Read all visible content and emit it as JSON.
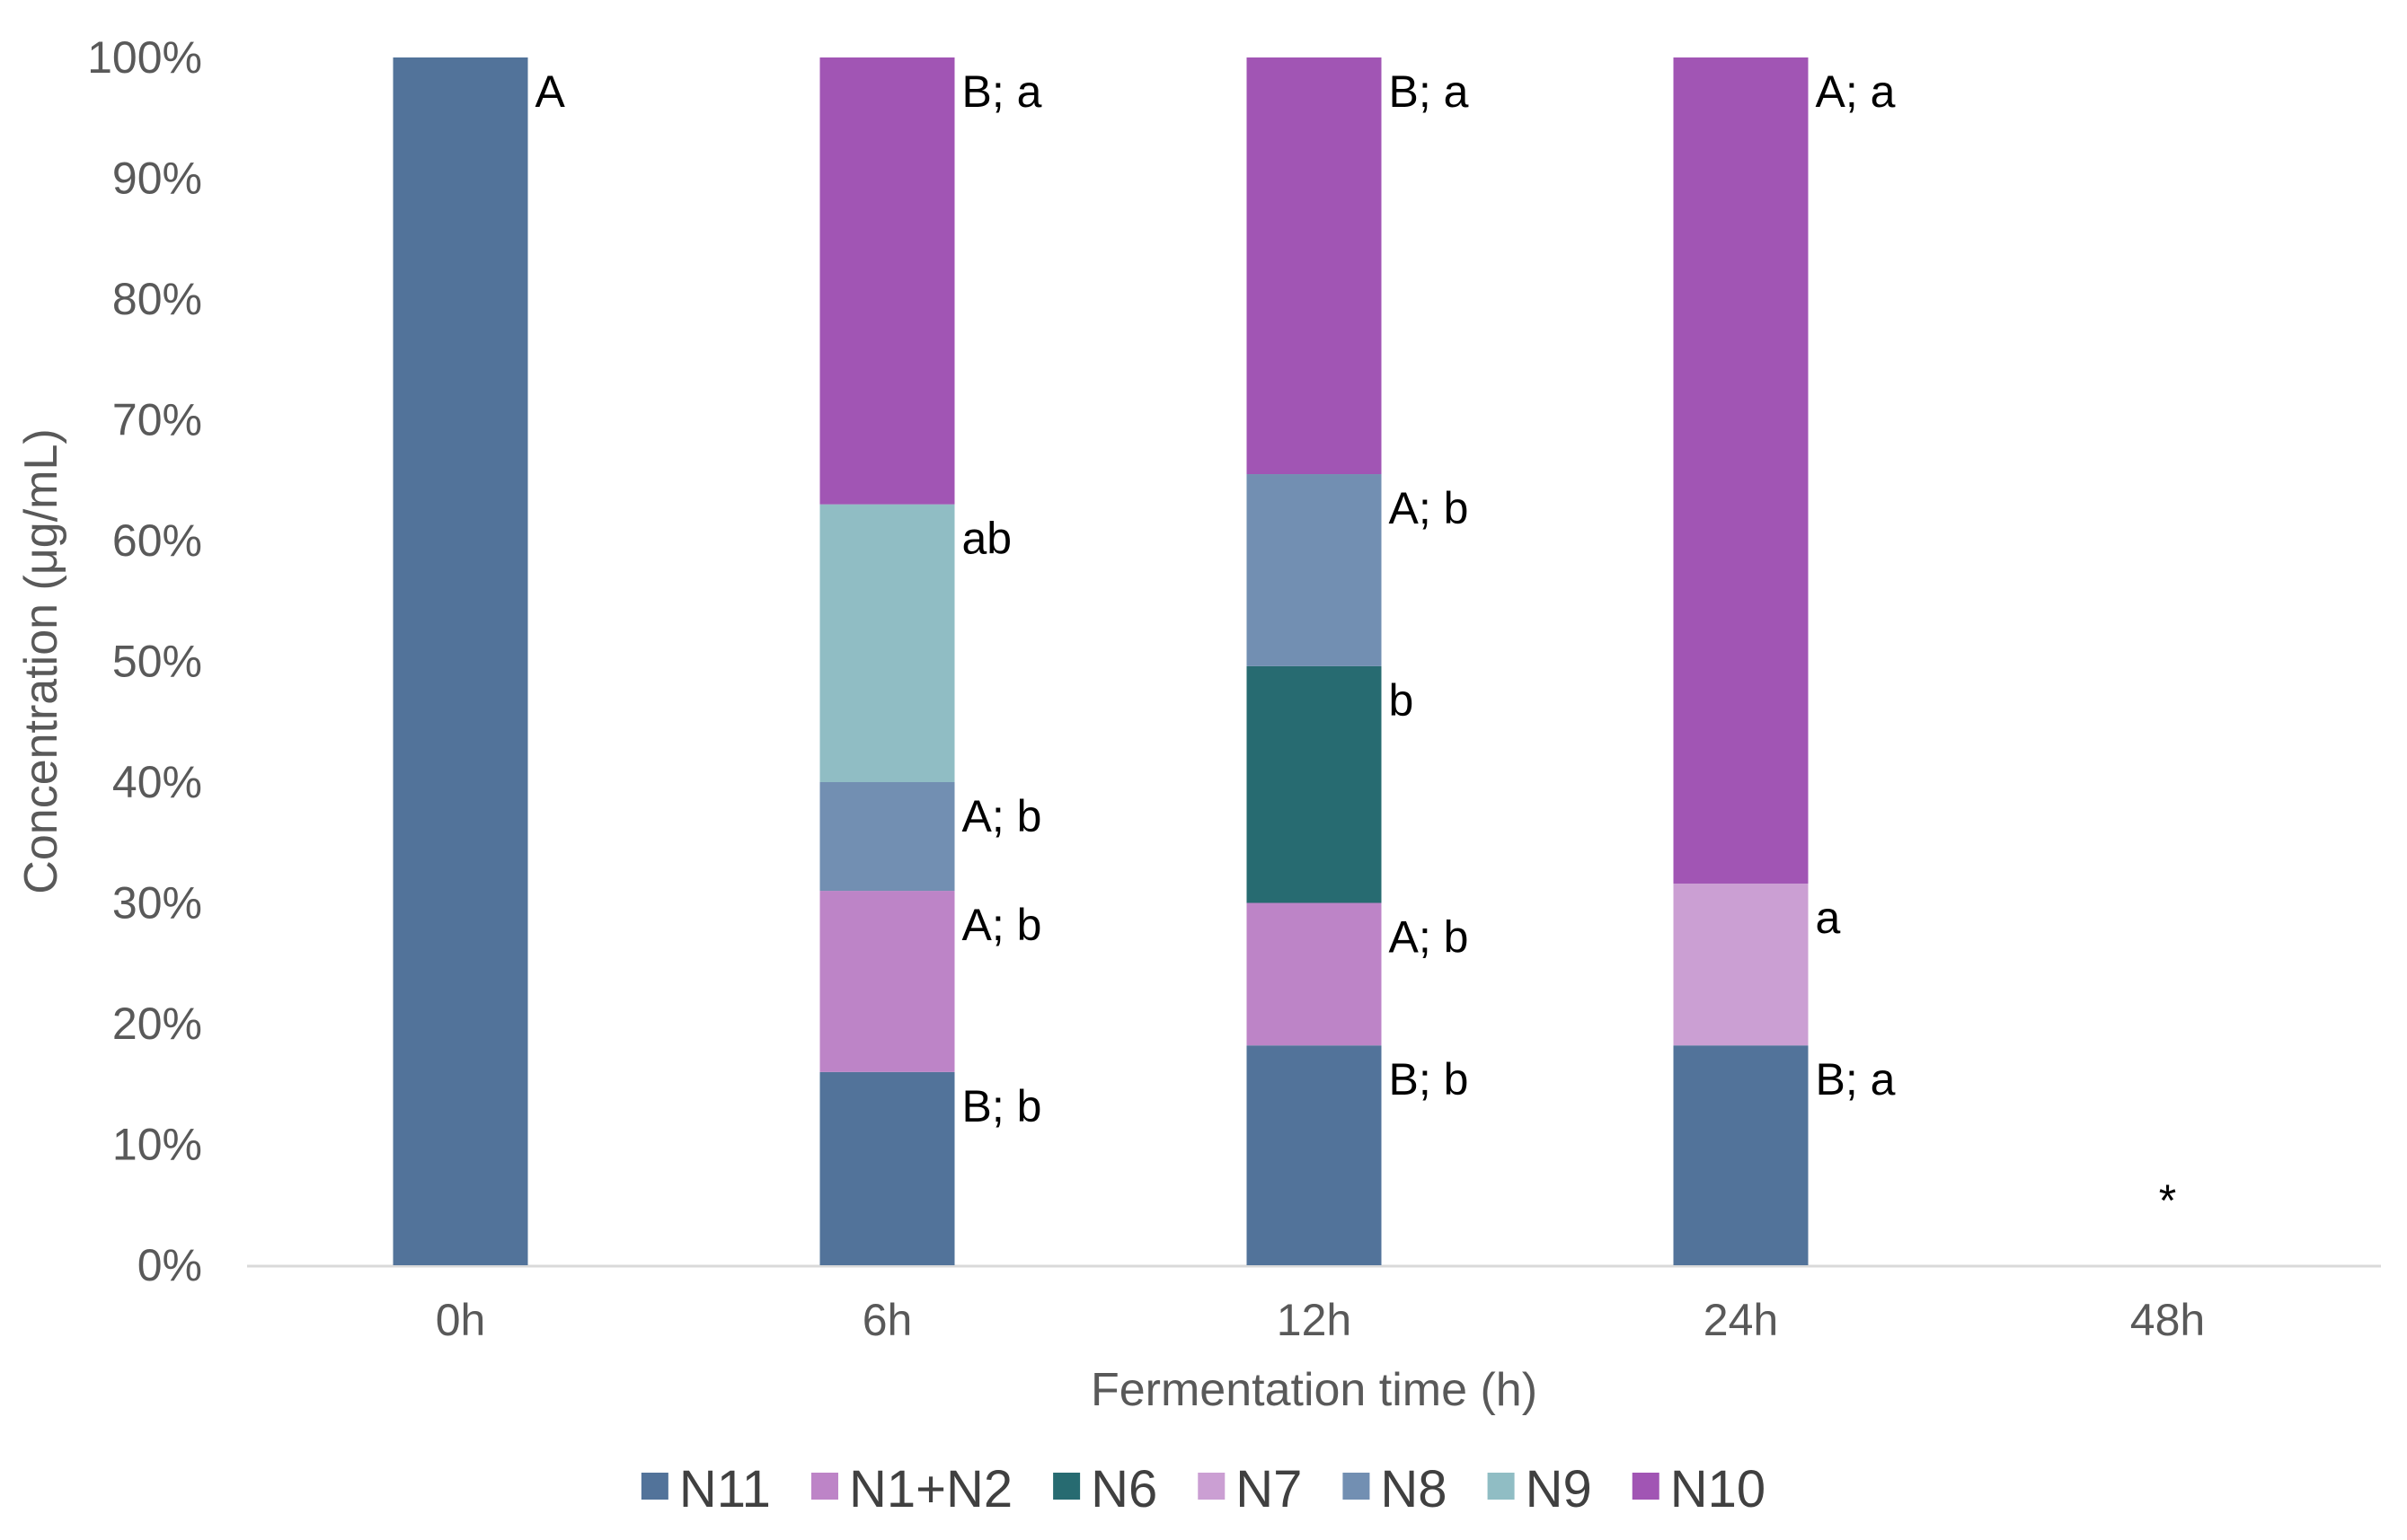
{
  "chart_data": {
    "type": "bar",
    "stacked": true,
    "normalized_percent": true,
    "title": "",
    "xlabel": "Fermentation time (h)",
    "ylabel": "Concentration (μg/mL)",
    "ylim": [
      0,
      100
    ],
    "y_ticks": [
      "0%",
      "10%",
      "20%",
      "30%",
      "40%",
      "50%",
      "60%",
      "70%",
      "80%",
      "90%",
      "100%"
    ],
    "categories": [
      "0h",
      "6h",
      "12h",
      "24h",
      "48h"
    ],
    "series": [
      {
        "name": "N11",
        "color": "#52739a",
        "values": [
          100,
          16,
          18.2,
          18.2,
          0
        ],
        "labels": [
          "A",
          "B; b",
          "B; b",
          "B; a",
          ""
        ]
      },
      {
        "name": "N1+N2",
        "color": "#bd84c7",
        "values": [
          0,
          15,
          11.8,
          0,
          0
        ],
        "labels": [
          "",
          "A; b",
          "A; b",
          "",
          ""
        ]
      },
      {
        "name": "N6",
        "color": "#276b71",
        "values": [
          0,
          0,
          19.6,
          0,
          0
        ],
        "labels": [
          "",
          "",
          "b",
          "",
          ""
        ]
      },
      {
        "name": "N7",
        "color": "#cb9fd3",
        "values": [
          0,
          0,
          0,
          13.4,
          0
        ],
        "labels": [
          "",
          "",
          "",
          "a",
          ""
        ]
      },
      {
        "name": "N8",
        "color": "#728fb2",
        "values": [
          0,
          9,
          15.9,
          0,
          0
        ],
        "labels": [
          "",
          "A; b",
          "A; b",
          "",
          ""
        ]
      },
      {
        "name": "N9",
        "color": "#90bdc4",
        "values": [
          0,
          23,
          0,
          0,
          0
        ],
        "labels": [
          "",
          "ab",
          "",
          "",
          ""
        ]
      },
      {
        "name": "N10",
        "color": "#a155b4",
        "values": [
          0,
          37,
          34.5,
          68.4,
          0
        ],
        "labels": [
          "",
          "B; a",
          "B; a",
          "A; a",
          ""
        ]
      }
    ],
    "annotations": [
      {
        "category": "48h",
        "text": "*"
      }
    ],
    "legend_position": "bottom"
  }
}
